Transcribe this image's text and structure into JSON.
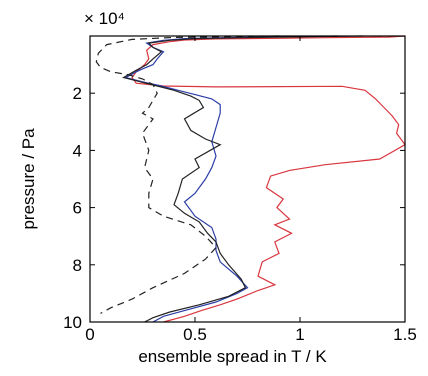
{
  "chart_data": {
    "type": "line",
    "title": "",
    "xlabel": "ensemble spread in T / K",
    "ylabel": "pressure / Pa",
    "y_multiplier_label": "× 10⁴",
    "xlim": [
      0,
      1.5
    ],
    "ylim": [
      0,
      100000
    ],
    "y_reversed": true,
    "grid": false,
    "legend": "none",
    "x_ticks": [
      0,
      0.5,
      1,
      1.5
    ],
    "x_tick_labels": [
      "0",
      "0.5",
      "1",
      "1.5"
    ],
    "y_ticks": [
      20000,
      40000,
      60000,
      80000,
      100000
    ],
    "y_tick_labels": [
      "2",
      "4",
      "6",
      "8",
      "10"
    ],
    "series": [
      {
        "color": "#d9363e",
        "dash": "solid",
        "points": [
          [
            1.5,
            0
          ],
          [
            1.42,
            400
          ],
          [
            1.12,
            600
          ],
          [
            0.9,
            800
          ],
          [
            0.6,
            1000
          ],
          [
            0.45,
            1400
          ],
          [
            0.38,
            2000
          ],
          [
            0.3,
            3000
          ],
          [
            0.27,
            5000
          ],
          [
            0.28,
            8000
          ],
          [
            0.26,
            10000
          ],
          [
            0.22,
            12500
          ],
          [
            0.2,
            14500
          ],
          [
            0.22,
            16500
          ],
          [
            0.35,
            17500
          ],
          [
            0.6,
            17800
          ],
          [
            1.2,
            17600
          ],
          [
            1.31,
            19000
          ],
          [
            1.36,
            22000
          ],
          [
            1.4,
            25000
          ],
          [
            1.44,
            28000
          ],
          [
            1.47,
            31000
          ],
          [
            1.46,
            34000
          ],
          [
            1.5,
            38000
          ],
          [
            1.38,
            43000
          ],
          [
            1.12,
            45000
          ],
          [
            0.95,
            47000
          ],
          [
            0.86,
            49000
          ],
          [
            0.84,
            53000
          ],
          [
            0.92,
            57000
          ],
          [
            0.89,
            60000
          ],
          [
            0.95,
            64000
          ],
          [
            0.88,
            66000
          ],
          [
            0.96,
            69000
          ],
          [
            0.88,
            72000
          ],
          [
            0.9,
            76000
          ],
          [
            0.82,
            79000
          ],
          [
            0.8,
            84000
          ],
          [
            0.88,
            87000
          ],
          [
            0.8,
            89000
          ],
          [
            0.7,
            92000
          ],
          [
            0.62,
            94000
          ],
          [
            0.53,
            96000
          ],
          [
            0.45,
            98000
          ],
          [
            0.35,
            100000
          ]
        ]
      },
      {
        "color": "#2b3ea6",
        "dash": "solid",
        "points": [
          [
            1.18,
            0
          ],
          [
            0.7,
            500
          ],
          [
            0.45,
            900
          ],
          [
            0.35,
            1500
          ],
          [
            0.27,
            2500
          ],
          [
            0.3,
            4000
          ],
          [
            0.35,
            5500
          ],
          [
            0.32,
            8000
          ],
          [
            0.3,
            10000
          ],
          [
            0.25,
            11500
          ],
          [
            0.22,
            12500
          ],
          [
            0.17,
            14500
          ],
          [
            0.25,
            16000
          ],
          [
            0.34,
            17500
          ],
          [
            0.42,
            19000
          ],
          [
            0.5,
            20500
          ],
          [
            0.58,
            22000
          ],
          [
            0.62,
            24000
          ],
          [
            0.62,
            27000
          ],
          [
            0.6,
            32000
          ],
          [
            0.58,
            37000
          ],
          [
            0.6,
            42000
          ],
          [
            0.58,
            46000
          ],
          [
            0.55,
            50000
          ],
          [
            0.5,
            55000
          ],
          [
            0.45,
            58000
          ],
          [
            0.5,
            63000
          ],
          [
            0.58,
            67000
          ],
          [
            0.6,
            71000
          ],
          [
            0.6,
            75000
          ],
          [
            0.62,
            79000
          ],
          [
            0.7,
            84000
          ],
          [
            0.75,
            88000
          ],
          [
            0.7,
            90000
          ],
          [
            0.6,
            93000
          ],
          [
            0.45,
            96000
          ],
          [
            0.35,
            98000
          ],
          [
            0.3,
            100000
          ]
        ]
      },
      {
        "color": "#222222",
        "dash": "solid",
        "points": [
          [
            1.3,
            0
          ],
          [
            0.8,
            500
          ],
          [
            0.5,
            900
          ],
          [
            0.38,
            1500
          ],
          [
            0.28,
            2500
          ],
          [
            0.3,
            4000
          ],
          [
            0.34,
            5500
          ],
          [
            0.3,
            8000
          ],
          [
            0.27,
            10000
          ],
          [
            0.22,
            12000
          ],
          [
            0.16,
            14500
          ],
          [
            0.24,
            16000
          ],
          [
            0.32,
            17500
          ],
          [
            0.4,
            19000
          ],
          [
            0.48,
            21000
          ],
          [
            0.52,
            22500
          ],
          [
            0.54,
            25000
          ],
          [
            0.45,
            29000
          ],
          [
            0.48,
            33000
          ],
          [
            0.55,
            36000
          ],
          [
            0.62,
            38000
          ],
          [
            0.5,
            43000
          ],
          [
            0.52,
            46000
          ],
          [
            0.44,
            50000
          ],
          [
            0.42,
            55000
          ],
          [
            0.4,
            59000
          ],
          [
            0.45,
            62000
          ],
          [
            0.52,
            65000
          ],
          [
            0.56,
            69000
          ],
          [
            0.6,
            72000
          ],
          [
            0.62,
            76000
          ],
          [
            0.66,
            80000
          ],
          [
            0.72,
            85000
          ],
          [
            0.74,
            88000
          ],
          [
            0.66,
            91000
          ],
          [
            0.52,
            94000
          ],
          [
            0.38,
            96500
          ],
          [
            0.3,
            98500
          ],
          [
            0.26,
            100000
          ]
        ]
      },
      {
        "color": "#222222",
        "dash": "dashed",
        "points": [
          [
            0.9,
            0
          ],
          [
            0.4,
            500
          ],
          [
            0.2,
            1200
          ],
          [
            0.08,
            3000
          ],
          [
            0.04,
            6000
          ],
          [
            0.03,
            9000
          ],
          [
            0.05,
            11000
          ],
          [
            0.1,
            12500
          ],
          [
            0.18,
            13500
          ],
          [
            0.25,
            15000
          ],
          [
            0.3,
            17000
          ],
          [
            0.32,
            20000
          ],
          [
            0.28,
            25000
          ],
          [
            0.25,
            27000
          ],
          [
            0.3,
            29000
          ],
          [
            0.25,
            34000
          ],
          [
            0.28,
            40000
          ],
          [
            0.26,
            46000
          ],
          [
            0.3,
            50000
          ],
          [
            0.28,
            55000
          ],
          [
            0.28,
            60000
          ],
          [
            0.35,
            63000
          ],
          [
            0.48,
            66000
          ],
          [
            0.55,
            70000
          ],
          [
            0.6,
            74000
          ],
          [
            0.55,
            78000
          ],
          [
            0.45,
            83000
          ],
          [
            0.3,
            88000
          ],
          [
            0.2,
            92000
          ],
          [
            0.1,
            95000
          ],
          [
            0.05,
            97000
          ]
        ]
      }
    ]
  }
}
